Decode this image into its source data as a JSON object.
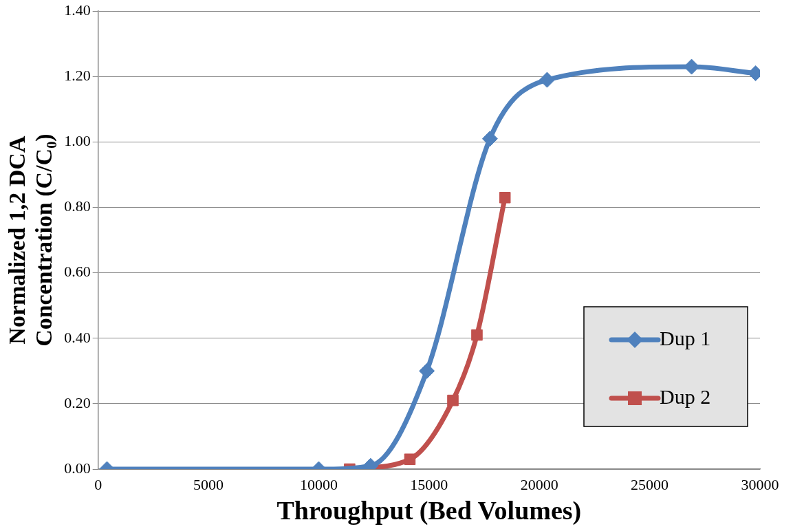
{
  "chart_data": {
    "type": "line",
    "xlabel": "Throughput (Bed Volumes)",
    "ylabel": "Normalized 1,2 DCA\nConcentration (C/C₀)",
    "xlim": [
      0,
      30000
    ],
    "xticks": [
      0,
      5000,
      10000,
      15000,
      20000,
      25000,
      30000
    ],
    "ylim": [
      0,
      1.4
    ],
    "yticks": [
      {
        "value": 0,
        "label": "0.00"
      },
      {
        "value": 0.2,
        "label": "0.20"
      },
      {
        "value": 0.4,
        "label": "0.40"
      },
      {
        "value": 0.6,
        "label": "0.60"
      },
      {
        "value": 0.8,
        "label": "0.80"
      },
      {
        "value": 1,
        "label": "1.00"
      },
      {
        "value": 1.2,
        "label": "1.20"
      },
      {
        "value": 1.4,
        "label": "1.40"
      }
    ],
    "grid": "y",
    "legend": "right",
    "series": [
      {
        "name": "Dup 1",
        "color": "#4f81bd",
        "marker": "diamond",
        "x": [
          400,
          10000,
          12350,
          14900,
          17760,
          20350,
          26900,
          29800
        ],
        "values": [
          0,
          0,
          0.01,
          0.3,
          1.01,
          1.19,
          1.23,
          1.21
        ]
      },
      {
        "name": "Dup 2",
        "color": "#c0504d",
        "marker": "square",
        "x": [
          11400,
          14130,
          16080,
          17170,
          18440
        ],
        "values": [
          0,
          0.03,
          0.21,
          0.41,
          0.83
        ]
      }
    ]
  }
}
